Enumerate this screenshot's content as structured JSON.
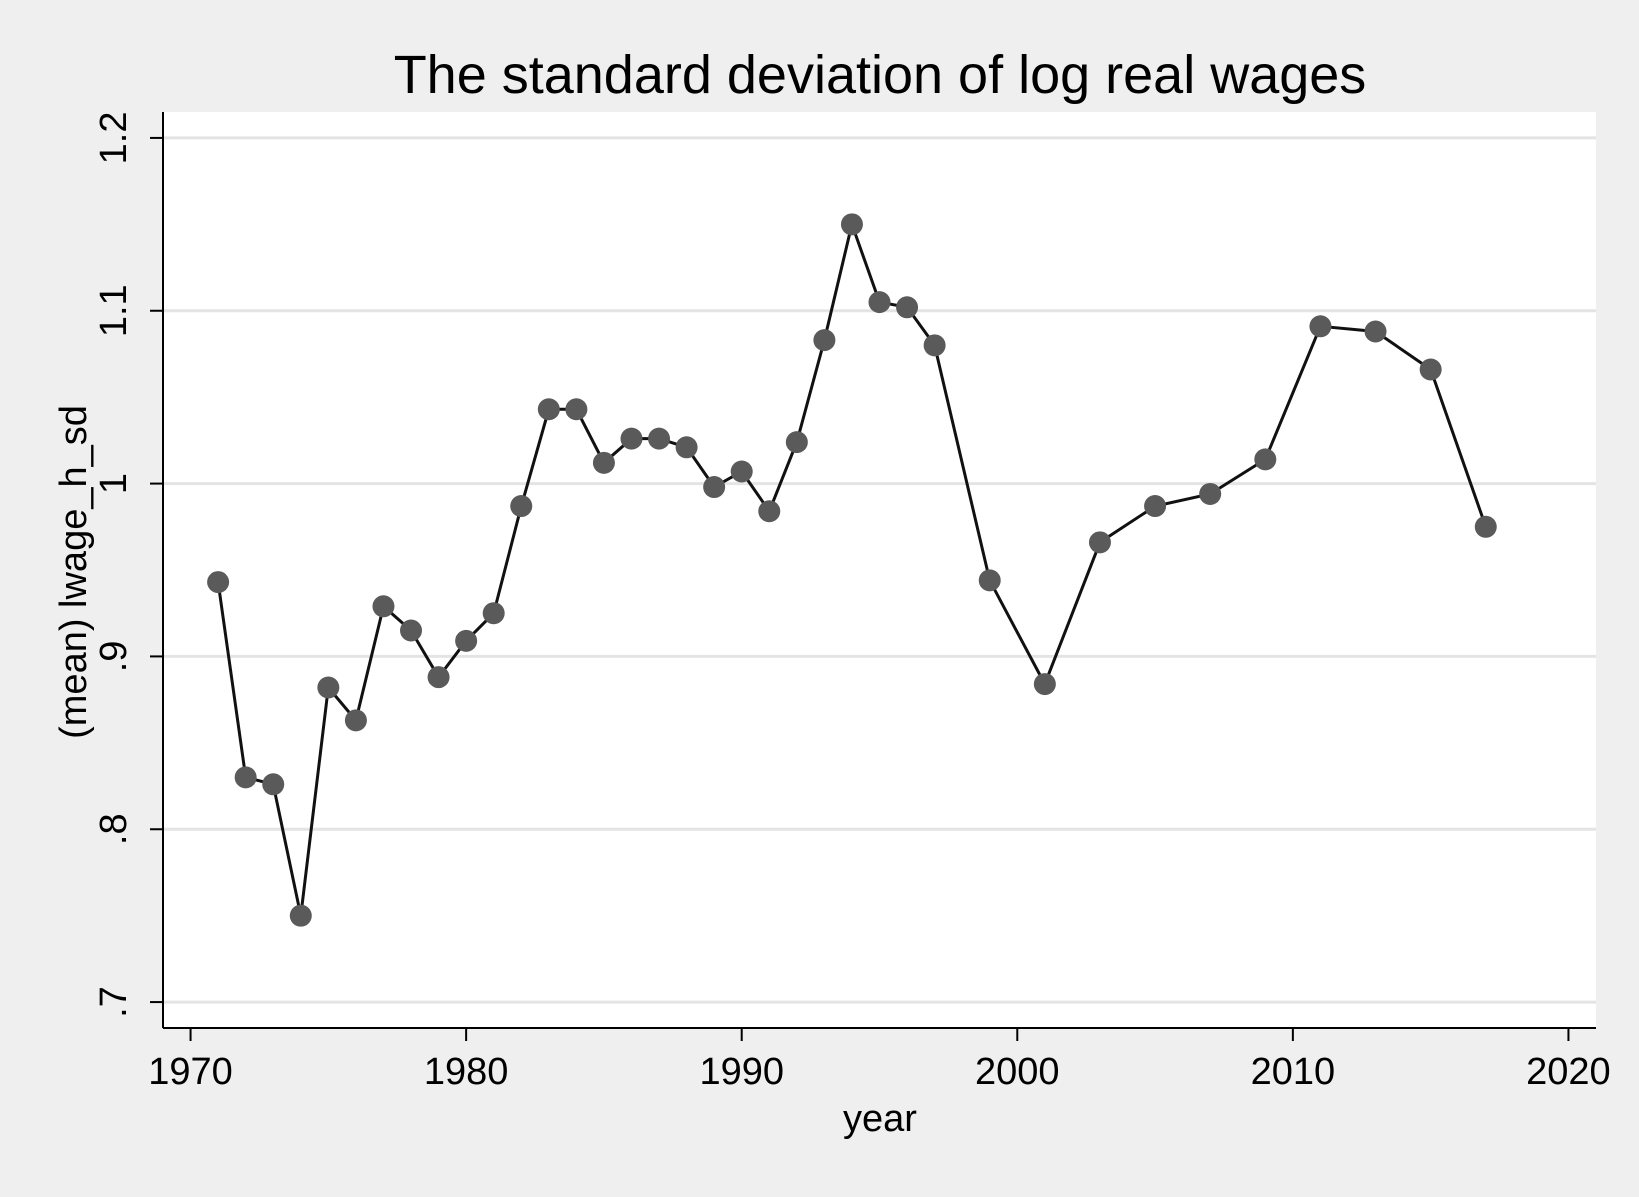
{
  "chart_data": {
    "type": "line",
    "title": "The standard deviation of log real wages",
    "xlabel": "year",
    "ylabel": "(mean) lwage_h_sd",
    "xlim": [
      1969,
      2021
    ],
    "ylim": [
      0.685,
      1.215
    ],
    "x_ticks": [
      1970,
      1980,
      1990,
      2000,
      2010,
      2020
    ],
    "x_tick_labels": [
      "1970",
      "1980",
      "1990",
      "2000",
      "2010",
      "2020"
    ],
    "y_ticks": [
      0.7,
      0.8,
      0.9,
      1.0,
      1.1,
      1.2
    ],
    "y_tick_labels": [
      ".7",
      ".8",
      ".9",
      "1",
      "1.1",
      "1.2"
    ],
    "grid": true,
    "legend": "none",
    "colors": {
      "background": "#efefef",
      "plot_area": "#ffffff",
      "grid": "#e4e4e4",
      "line": "#111111",
      "marker": "#5a5a5a"
    },
    "series": [
      {
        "x": [
          1971,
          1972,
          1973,
          1974,
          1975,
          1976,
          1977,
          1978,
          1979,
          1980,
          1981,
          1982,
          1983,
          1984,
          1985,
          1986,
          1987,
          1988,
          1989,
          1990,
          1991,
          1992,
          1993,
          1994,
          1995,
          1996,
          1997,
          1999,
          2001,
          2003,
          2005,
          2007,
          2009,
          2011,
          2013,
          2015,
          2017
        ],
        "values": [
          0.943,
          0.83,
          0.826,
          0.75,
          0.882,
          0.863,
          0.929,
          0.915,
          0.888,
          0.909,
          0.925,
          0.987,
          1.043,
          1.043,
          1.012,
          1.026,
          1.026,
          1.021,
          0.998,
          1.007,
          0.984,
          1.024,
          1.083,
          1.15,
          1.105,
          1.102,
          1.08,
          0.944,
          0.884,
          0.966,
          0.987,
          0.994,
          1.014,
          1.091,
          1.088,
          1.066,
          0.975
        ]
      }
    ]
  }
}
